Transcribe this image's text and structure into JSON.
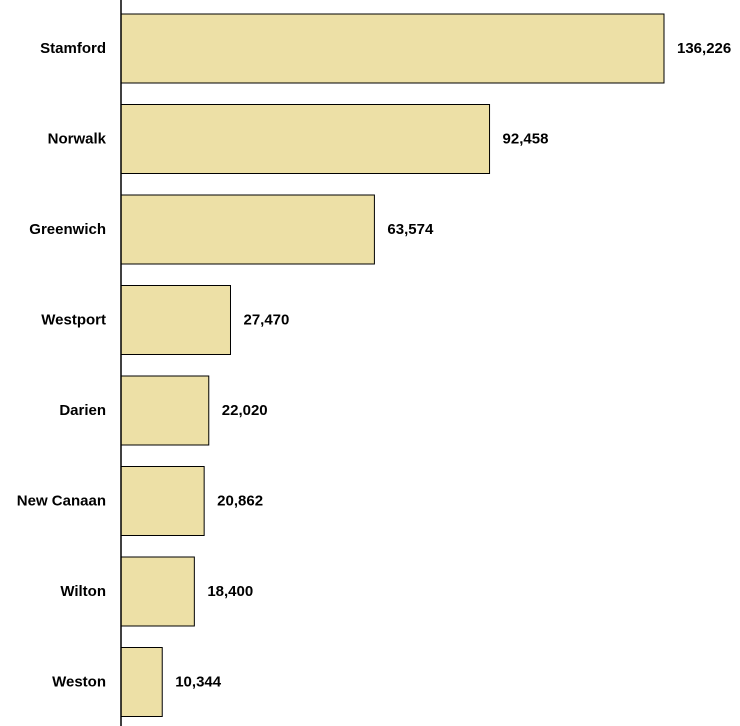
{
  "chart_data": {
    "type": "bar",
    "orientation": "horizontal",
    "title": "",
    "xlabel": "",
    "ylabel": "",
    "categories": [
      "Stamford",
      "Norwalk",
      "Greenwich",
      "Westport",
      "Darien",
      "New Canaan",
      "Wilton",
      "Weston"
    ],
    "values": [
      136226,
      92458,
      63574,
      27470,
      22020,
      20862,
      18400,
      10344
    ],
    "value_labels": [
      "136,226",
      "92,458",
      "63,574",
      "27,470",
      "22,020",
      "20,862",
      "18,400",
      "10,344"
    ],
    "xlim": [
      0,
      136226
    ],
    "grid": false,
    "legend": "none",
    "colors": {
      "bar_fill": "#ede0a6",
      "bar_stroke": "#000000",
      "axis": "#000000",
      "text": "#000000"
    }
  }
}
